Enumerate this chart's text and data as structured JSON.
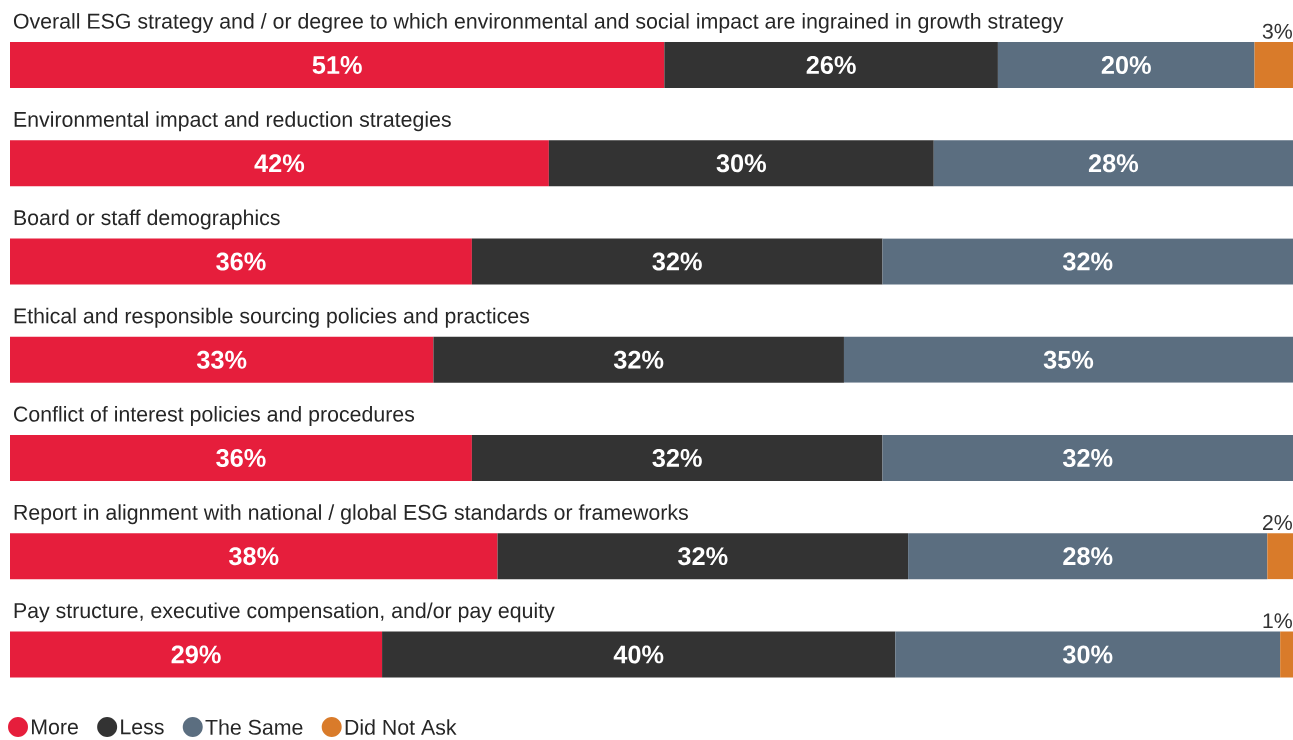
{
  "chart_data": {
    "type": "bar",
    "orientation": "horizontal",
    "stacked": true,
    "legend": "bottom",
    "categories": [
      "Overall ESG strategy and / or degree to which environmental and social impact are ingrained in growth strategy",
      "Environmental impact and reduction strategies",
      "Board or staff demographics",
      "Ethical and responsible sourcing policies and practices",
      "Conflict of interest policies and procedures",
      "Report in alignment with national / global ESG standards or frameworks",
      "Pay structure, executive compensation, and/or pay equity"
    ],
    "series": [
      {
        "name": "More",
        "color": "#e61e3c",
        "values": [
          51,
          42,
          36,
          33,
          36,
          38,
          29
        ],
        "value_labels": [
          "51%",
          "42%",
          "36%",
          "33%",
          "36%",
          "38%",
          "29%"
        ]
      },
      {
        "name": "Less",
        "color": "#333333",
        "values": [
          26,
          30,
          32,
          32,
          32,
          32,
          40
        ],
        "value_labels": [
          "26%",
          "30%",
          "32%",
          "32%",
          "32%",
          "32%",
          "40%"
        ]
      },
      {
        "name": "The Same",
        "color": "#5b6e80",
        "values": [
          20,
          28,
          32,
          35,
          32,
          28,
          30
        ],
        "value_labels": [
          "20%",
          "28%",
          "32%",
          "35%",
          "32%",
          "28%",
          "30%"
        ]
      },
      {
        "name": "Did Not Ask",
        "color": "#d97b2a",
        "values": [
          3,
          null,
          null,
          null,
          null,
          2,
          1
        ],
        "value_labels": [
          "3%",
          null,
          null,
          null,
          null,
          "2%",
          "1%"
        ]
      }
    ]
  }
}
